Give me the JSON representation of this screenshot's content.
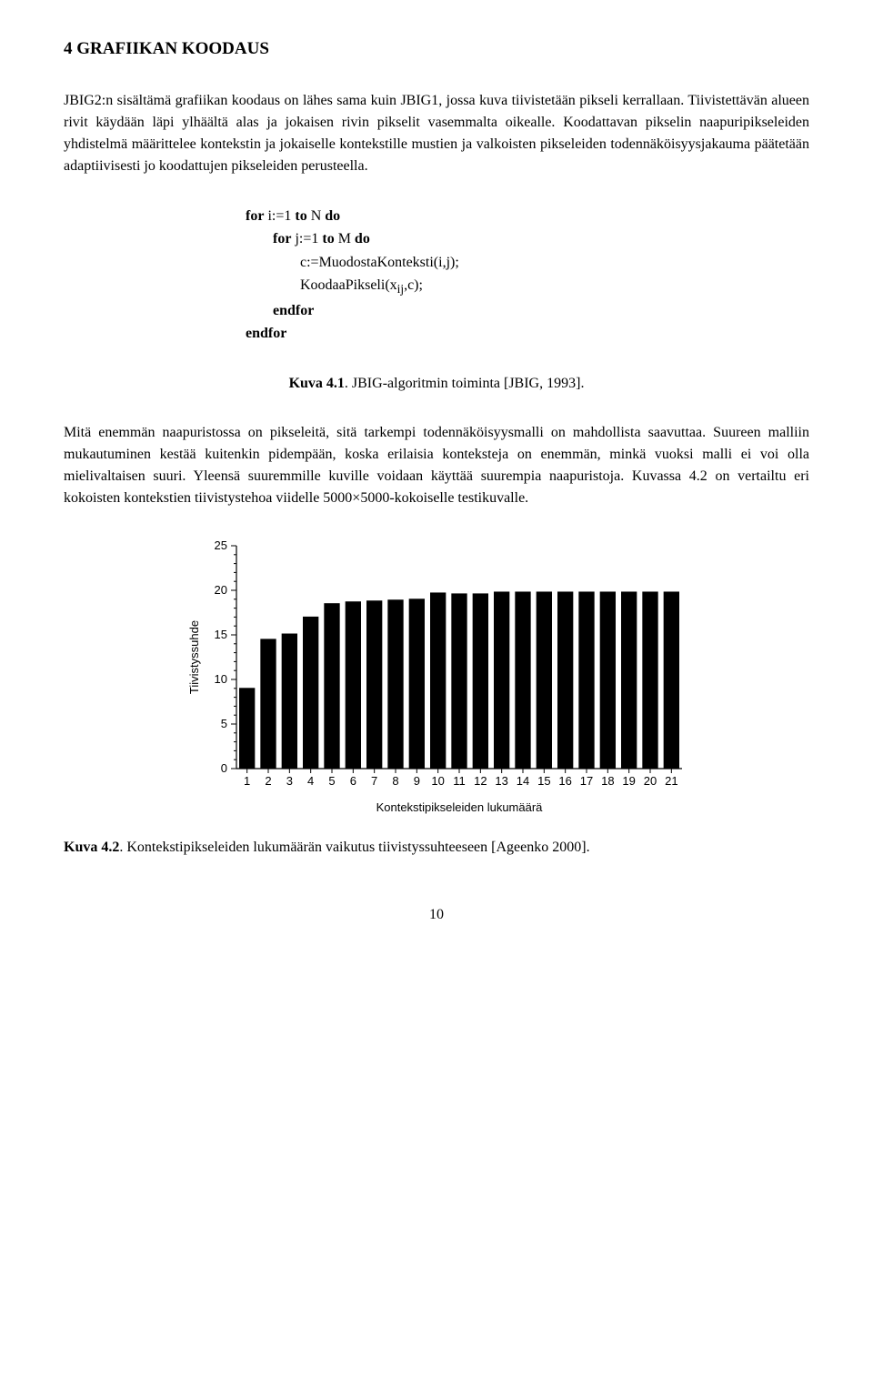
{
  "heading": "4 GRAFIIKAN KOODAUS",
  "para1": "JBIG2:n sisältämä grafiikan koodaus on lähes sama kuin JBIG1, jossa kuva tiivistetään pikseli kerrallaan. Tiivistettävän alueen rivit käydään läpi ylhäältä alas ja jokaisen rivin pikselit vasemmalta oikealle. Koodattavan pikselin naapuripikseleiden yhdistelmä määrittelee kontekstin ja jokaiselle kontekstille mustien ja valkoisten pikseleiden todennäköisyysjakauma päätetään adaptiivisesti jo koodattujen pikseleiden perusteella.",
  "algo": {
    "l1a_b": "for",
    "l1a_r": " i:=1 ",
    "l1a_b2": "to",
    "l1a_r2": " N ",
    "l1a_b3": "do",
    "l2a_b": "for",
    "l2a_r": " j:=1 ",
    "l2a_b2": "to",
    "l2a_r2": " M ",
    "l2a_b3": "do",
    "l3a": "c:=MuodostaKonteksti(i,j);",
    "l3b_pre": "KoodaaPikseli(x",
    "l3b_sub": "ij",
    "l3b_post": ",c);",
    "l2end": "endfor",
    "l1end": "endfor"
  },
  "caption1_b": "Kuva 4.1",
  "caption1_r": ". JBIG-algoritmin toiminta [JBIG, 1993].",
  "para2": "Mitä enemmän naapuristossa on pikseleitä, sitä tarkempi todennäköisyysmalli on mahdollista saavuttaa. Suureen malliin mukautuminen kestää kuitenkin pidempään, koska erilaisia konteksteja on enemmän, minkä vuoksi malli ei voi olla mielivaltaisen suuri. Yleensä suuremmille kuville voidaan käyttää suurempia naapuristoja. Kuvassa 4.2 on vertailtu eri kokoisten kontekstien tiivistystehoa viidelle 5000×5000-kokoiselle testikuvalle.",
  "chart": {
    "type": "bar",
    "ylabel": "Tiivistyssuhde",
    "xlabel": "Kontekstipikseleiden lukumäärä",
    "ylim": [
      0,
      25
    ],
    "yticks": [
      0,
      5,
      10,
      15,
      20,
      25
    ],
    "categories": [
      "1",
      "2",
      "3",
      "4",
      "5",
      "6",
      "7",
      "8",
      "9",
      "10",
      "11",
      "12",
      "13",
      "14",
      "15",
      "16",
      "17",
      "18",
      "19",
      "20",
      "21"
    ],
    "values": [
      9,
      14.5,
      15.1,
      17,
      18.5,
      18.7,
      18.8,
      18.9,
      19,
      19.7,
      19.6,
      19.6,
      19.8,
      19.8,
      19.8,
      19.8,
      19.8,
      19.8,
      19.8,
      19.8,
      19.8
    ],
    "bar_fill": "#000000",
    "bar_stroke": "#000000",
    "background": "#ffffff",
    "axis_color": "#000000",
    "bar_width_ratio": 0.7,
    "tick_font_size": 13,
    "label_font_size": 13,
    "minor_y_ticks": 5
  },
  "caption2_b": "Kuva 4.2",
  "caption2_r": ". Kontekstipikseleiden lukumäärän vaikutus tiivistyssuhteeseen [Ageenko 2000].",
  "page_number": "10"
}
